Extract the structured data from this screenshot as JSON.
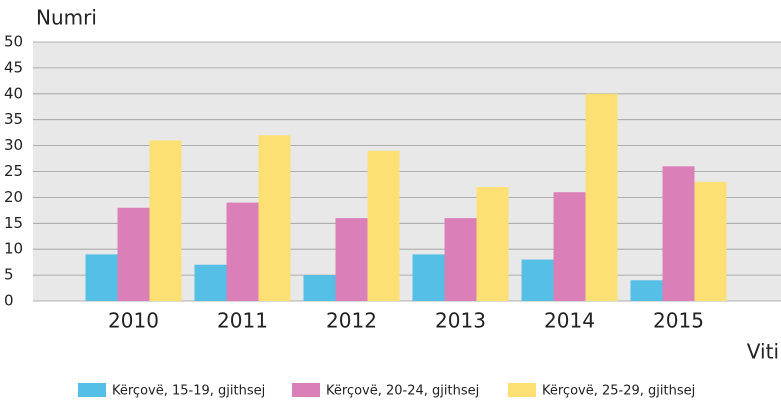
{
  "chart_data": {
    "type": "bar",
    "y_label": "Numri",
    "x_label": "Viti",
    "categories": [
      "2010",
      "2011",
      "2012",
      "2013",
      "2014",
      "2015"
    ],
    "series": [
      {
        "name": "Kërçovë, 15-19, gjithsej",
        "color": "#56bfe6",
        "values": [
          9,
          7,
          5,
          9,
          8,
          4
        ]
      },
      {
        "name": "Kërçovë, 20-24, gjithsej",
        "color": "#db7fb8",
        "values": [
          18,
          19,
          16,
          16,
          21,
          26
        ]
      },
      {
        "name": "Kërçovë, 25-29, gjithsej",
        "color": "#fde073",
        "values": [
          31,
          32,
          29,
          22,
          40,
          23
        ]
      }
    ],
    "ylim": [
      0,
      50
    ],
    "yticks": [
      0,
      5,
      10,
      15,
      20,
      25,
      30,
      35,
      40,
      45,
      50
    ],
    "grid": true
  }
}
